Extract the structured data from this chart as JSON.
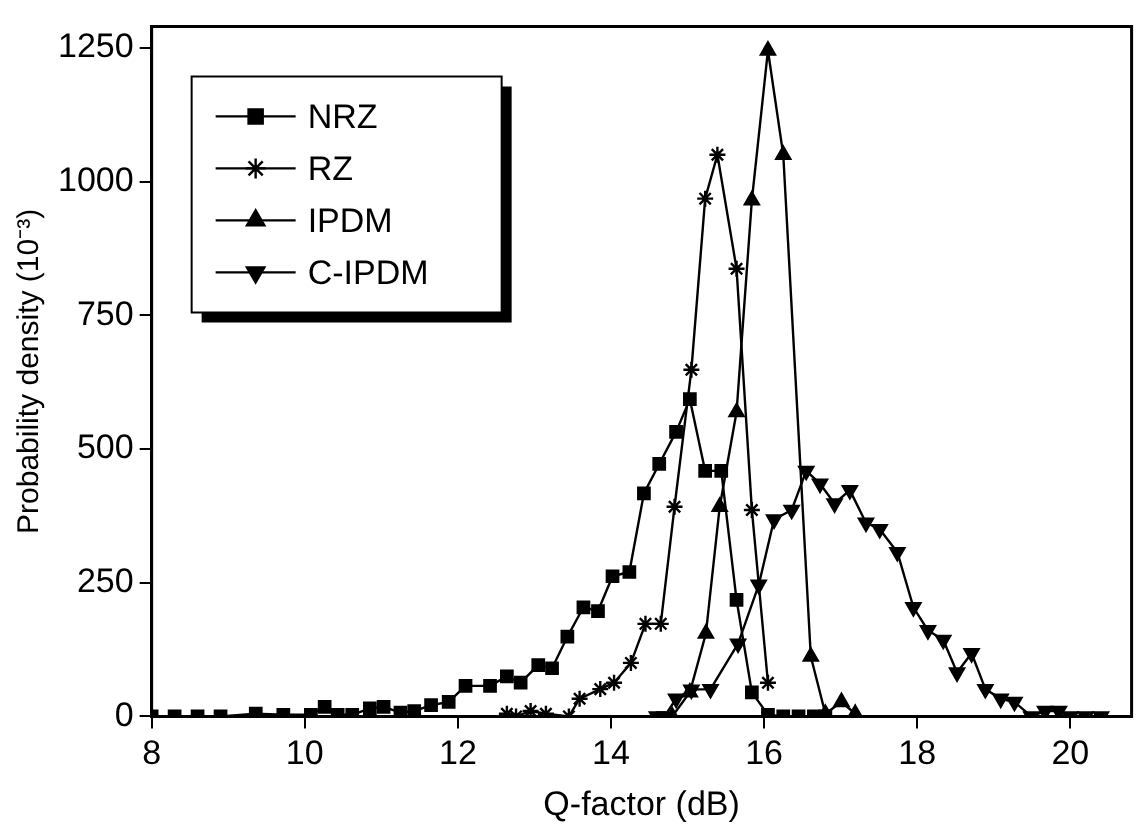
{
  "chart_data": {
    "type": "line",
    "xlabel": "Q-factor (dB)",
    "ylabel": "Probability density (10⁻³)",
    "xlim": [
      8,
      20.8
    ],
    "xticks": [
      8,
      10,
      12,
      14,
      16,
      18,
      20
    ],
    "ylim": [
      0,
      1290
    ],
    "yticks": [
      0,
      250,
      500,
      750,
      1000,
      1250
    ],
    "grid": false,
    "legend": "top left",
    "series": [
      {
        "name": "NRZ",
        "color": "#000000",
        "marker": "square",
        "x": [
          8,
          8.3,
          8.6,
          8.9,
          9.36,
          9.72,
          10.08,
          10.26,
          10.43,
          10.62,
          10.85,
          11.03,
          11.25,
          11.43,
          11.65,
          11.88,
          12.1,
          12.42,
          12.64,
          12.82,
          13.05,
          13.23,
          13.43,
          13.64,
          13.83,
          14.02,
          14.24,
          14.43,
          14.63,
          14.85,
          15.03,
          15.23,
          15.44,
          15.64,
          15.84,
          16.05,
          16.25,
          16.45,
          16.65,
          16.8
        ],
        "values": [
          0,
          0,
          0,
          0,
          5,
          3,
          3,
          18,
          3,
          3,
          15,
          18,
          7,
          10,
          21,
          27,
          57,
          57,
          75,
          63,
          96,
          90,
          149,
          204,
          197,
          262,
          270,
          417,
          472,
          532,
          593,
          459,
          459,
          218,
          45,
          3,
          0,
          0,
          0,
          0
        ]
      },
      {
        "name": "RZ",
        "color": "#000000",
        "marker": "cross",
        "x": [
          12.64,
          12.76,
          12.95,
          13.15,
          13.45,
          13.59,
          13.86,
          14.04,
          14.26,
          14.45,
          14.65,
          14.83,
          15.05,
          15.23,
          15.39,
          15.64,
          15.84,
          16.05
        ],
        "values": [
          5,
          0,
          10,
          5,
          0,
          33,
          51,
          63,
          100,
          173,
          173,
          392,
          648,
          968,
          1050,
          837,
          386,
          63
        ]
      },
      {
        "name": "IPDM",
        "color": "#000000",
        "marker": "triangle",
        "x": [
          14.8,
          15.03,
          15.24,
          15.42,
          15.64,
          15.84,
          16.05,
          16.25,
          16.61,
          16.8,
          17.01,
          17.19
        ],
        "values": [
          0,
          45,
          155,
          392,
          569,
          965,
          1245,
          1050,
          112,
          5,
          27,
          5
        ]
      },
      {
        "name": "C-IPDM",
        "color": "#000000",
        "marker": "triangle-down",
        "x": [
          14.6,
          14.7,
          14.85,
          15.05,
          15.3,
          15.66,
          15.93,
          16.13,
          16.36,
          16.55,
          16.73,
          16.92,
          17.12,
          17.33,
          17.51,
          17.74,
          17.95,
          18.14,
          18.34,
          18.52,
          18.71,
          18.89,
          19.09,
          19.27,
          19.49,
          19.67,
          19.85,
          20.0,
          20.2,
          20.4
        ],
        "values": [
          0,
          0,
          33,
          50,
          51,
          136,
          246,
          368,
          386,
          459,
          435,
          398,
          423,
          362,
          350,
          307,
          204,
          161,
          143,
          82,
          118,
          51,
          33,
          27,
          0,
          10,
          10,
          0,
          0,
          0
        ]
      }
    ]
  }
}
